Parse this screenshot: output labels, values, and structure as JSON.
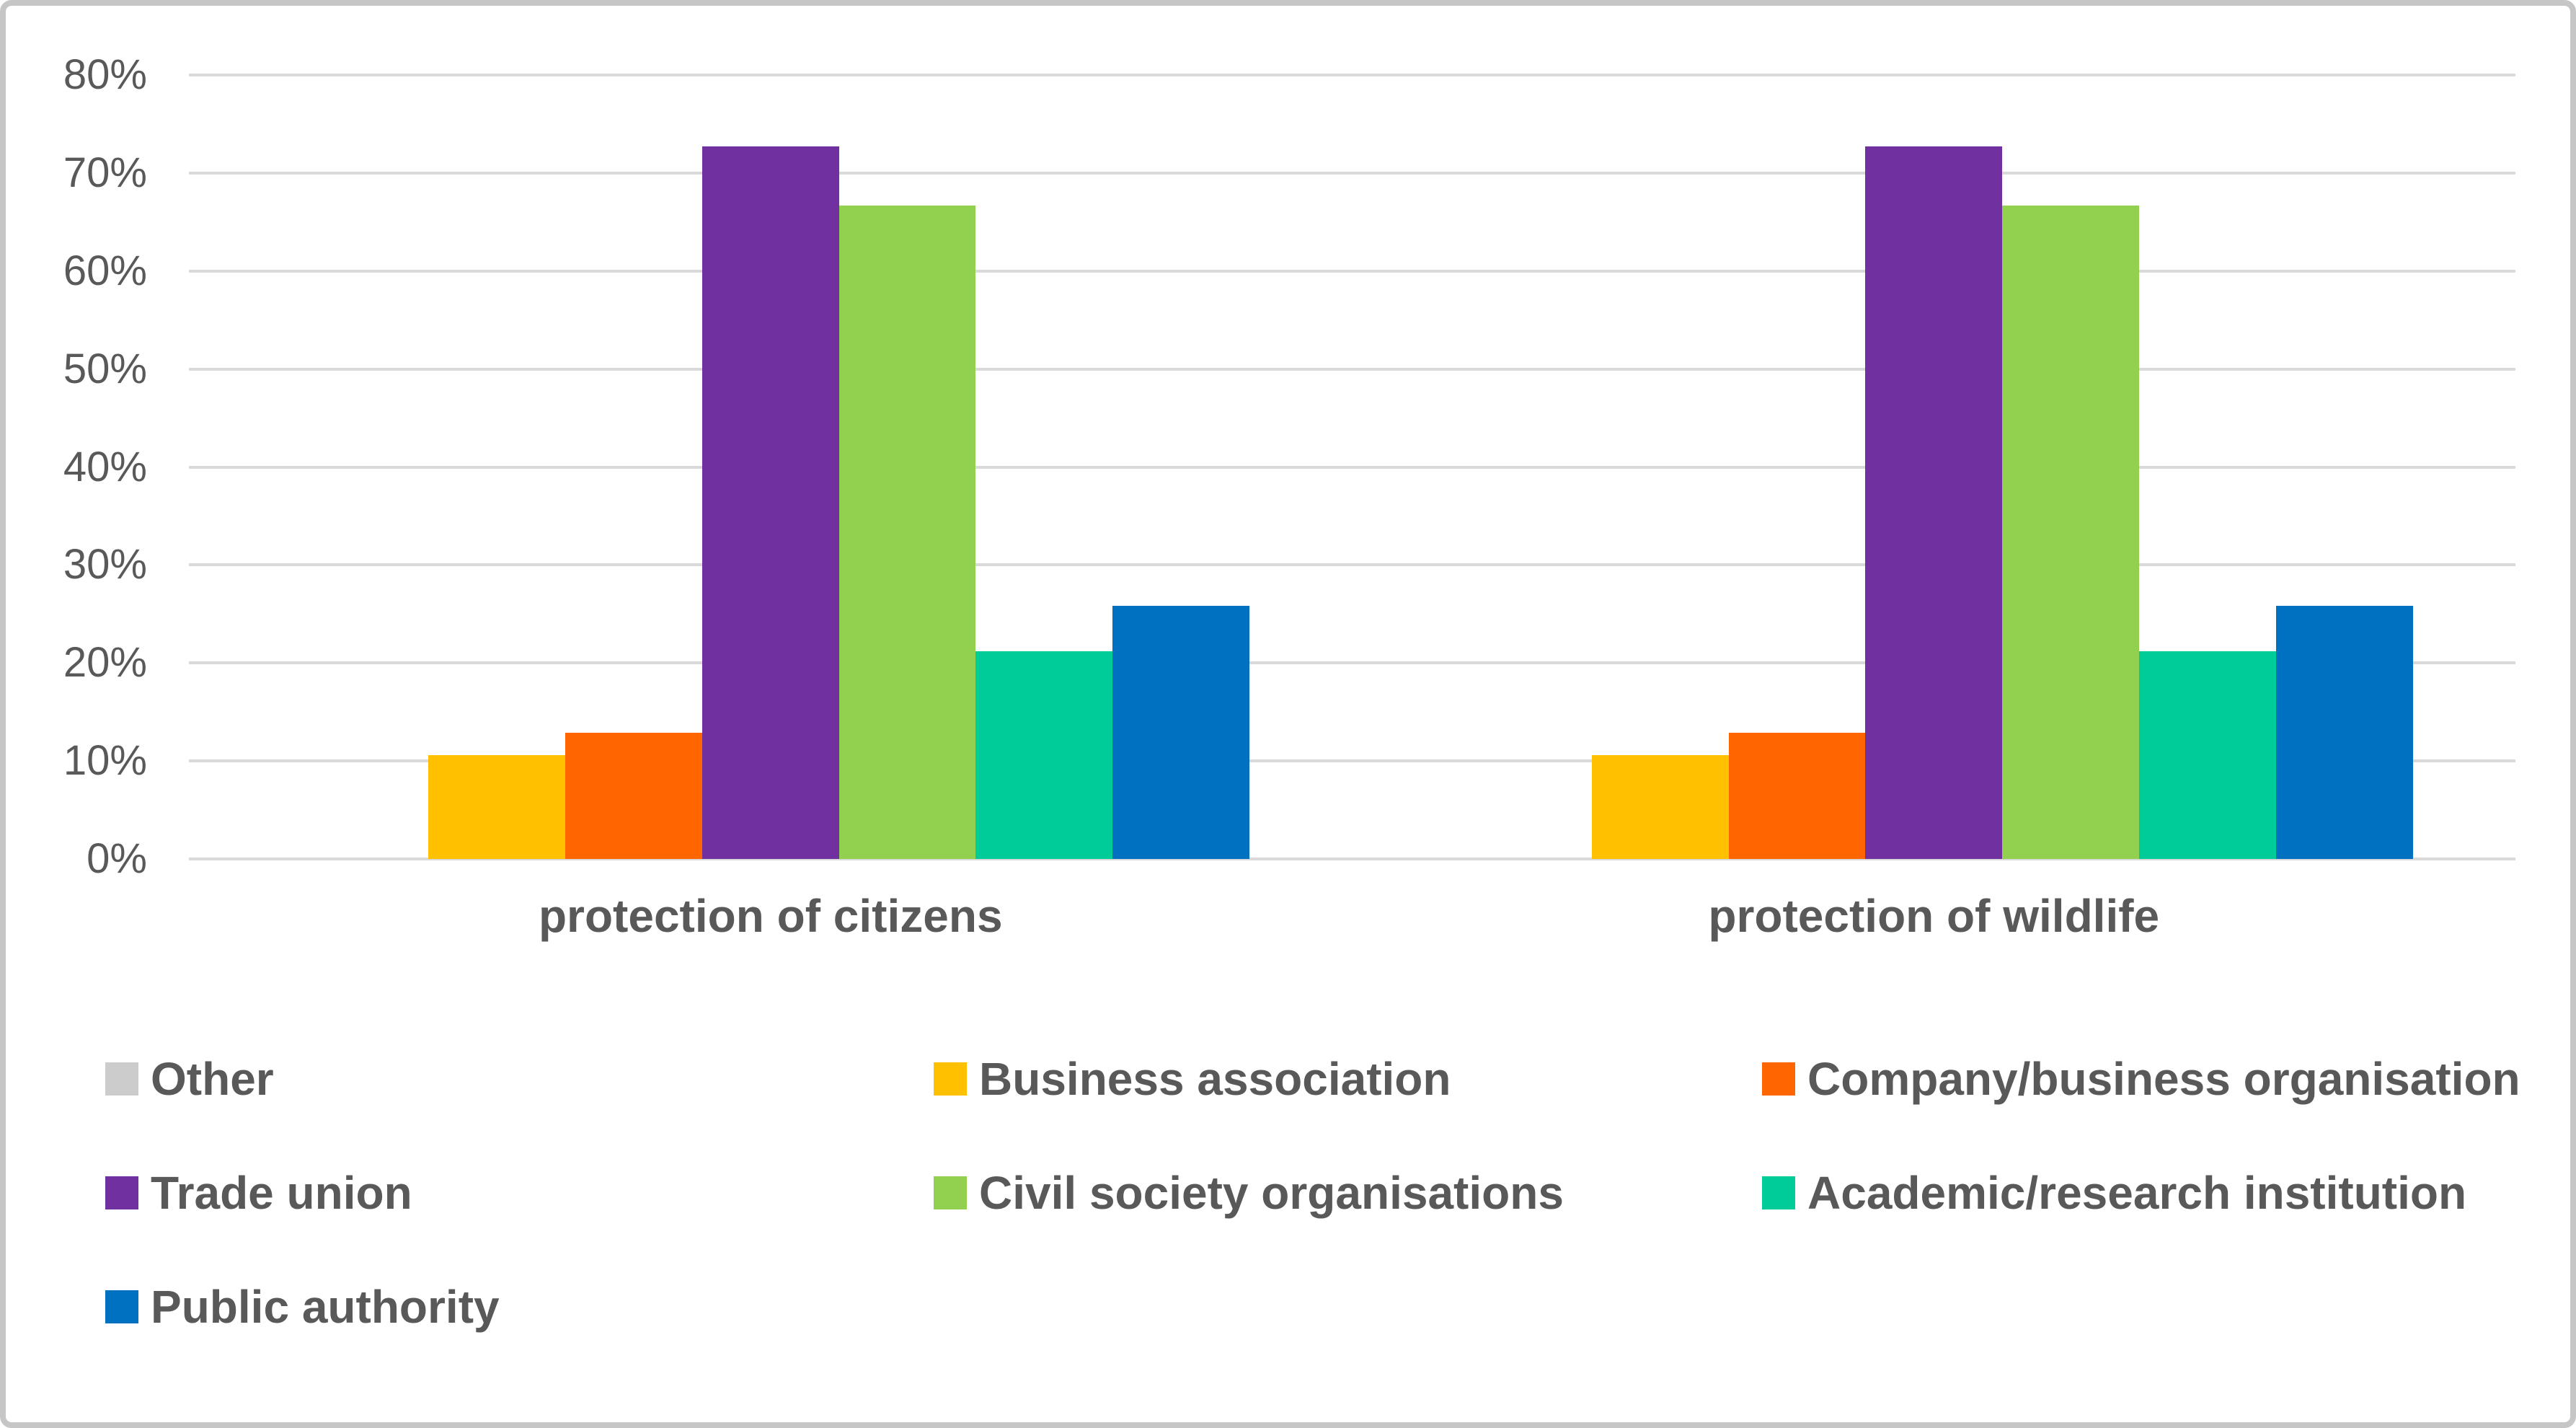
{
  "chart_data": {
    "type": "bar",
    "title": "",
    "xlabel": "",
    "ylabel": "",
    "categories": [
      "protection of citizens",
      "protection of wildlife"
    ],
    "series": [
      {
        "name": "Other",
        "color": "#cccccc",
        "values": [
          0,
          0
        ]
      },
      {
        "name": "Business association",
        "color": "#ffc000",
        "values": [
          10.6,
          10.6
        ]
      },
      {
        "name": "Company/business organisation",
        "color": "#ff6600",
        "values": [
          12.9,
          12.9
        ]
      },
      {
        "name": "Trade union",
        "color": "#7030a0",
        "values": [
          72.7,
          72.7
        ]
      },
      {
        "name": "Civil society organisations",
        "color": "#92d050",
        "values": [
          66.7,
          66.7
        ]
      },
      {
        "name": "Academic/research institution",
        "color": "#00cc99",
        "values": [
          21.2,
          21.2
        ]
      },
      {
        "name": "Public authority",
        "color": "#0070c0",
        "values": [
          25.8,
          25.8
        ]
      }
    ],
    "ylim": [
      0,
      80
    ],
    "ytick_step": 10,
    "ytick_labels": [
      "0%",
      "10%",
      "20%",
      "30%",
      "40%",
      "50%",
      "60%",
      "70%",
      "80%"
    ],
    "grid": true,
    "gridline_color": "#d9d9d9",
    "axis_text_color": "#595959",
    "legend_position": "bottom",
    "legend_columns": 3,
    "bar_gap_width_percent": 150
  }
}
